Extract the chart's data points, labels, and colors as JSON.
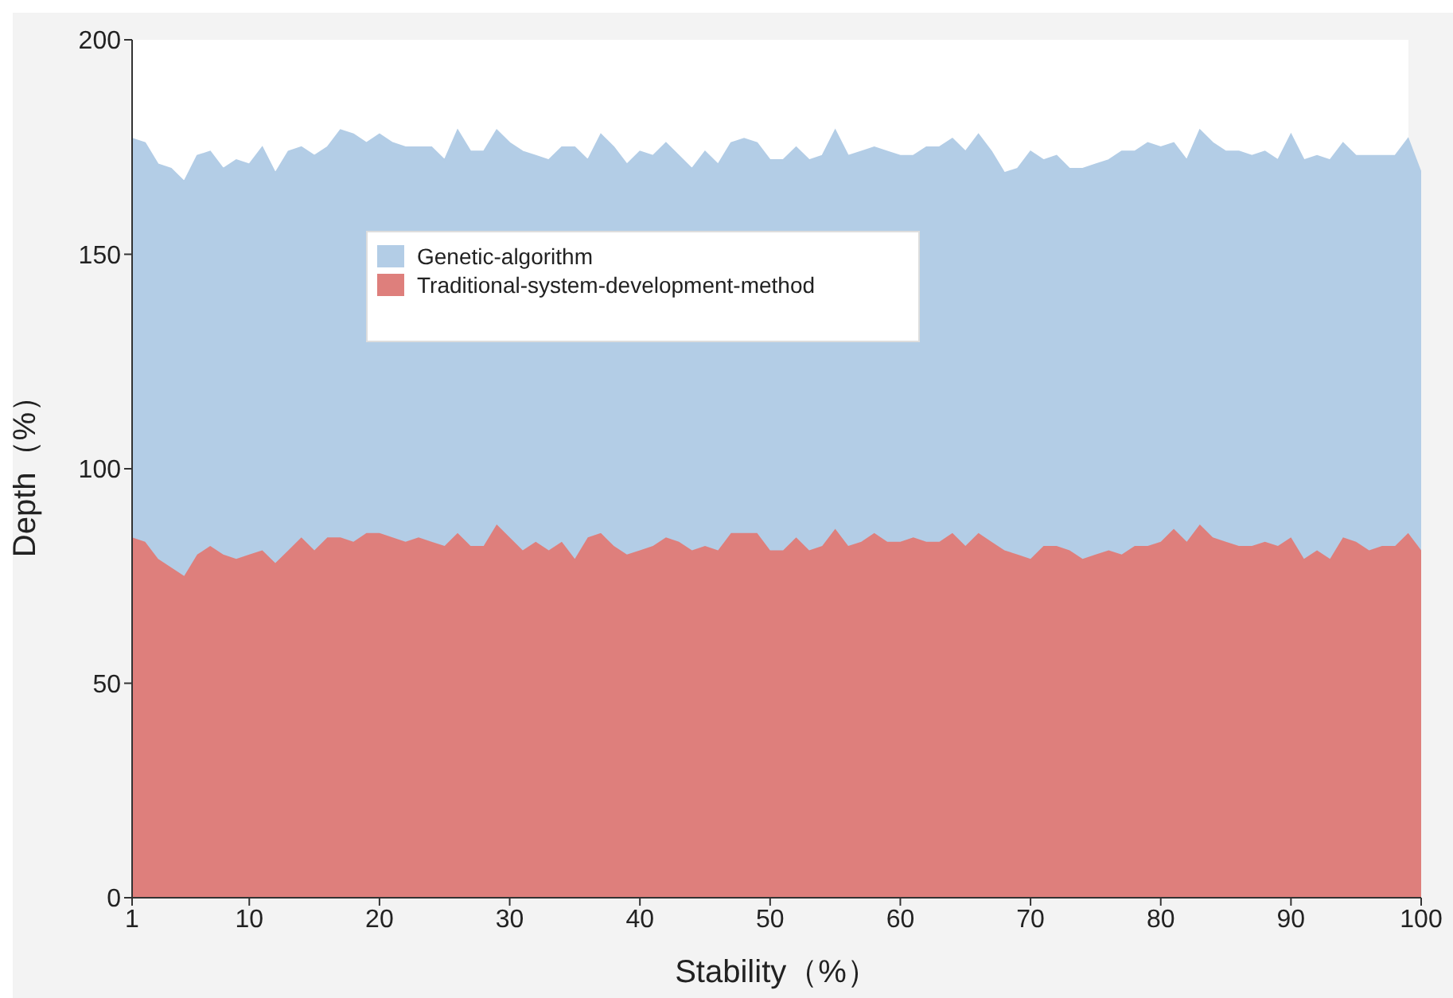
{
  "chart_data": {
    "type": "area",
    "stacked": true,
    "xlabel": "Stability（%）",
    "ylabel": "Depth（%）",
    "x": [
      1,
      2,
      3,
      4,
      5,
      6,
      7,
      8,
      9,
      10,
      11,
      12,
      13,
      14,
      15,
      16,
      17,
      18,
      19,
      20,
      21,
      22,
      23,
      24,
      25,
      26,
      27,
      28,
      29,
      30,
      31,
      32,
      33,
      34,
      35,
      36,
      37,
      38,
      39,
      40,
      41,
      42,
      43,
      44,
      45,
      46,
      47,
      48,
      49,
      50,
      51,
      52,
      53,
      54,
      55,
      56,
      57,
      58,
      59,
      60,
      61,
      62,
      63,
      64,
      65,
      66,
      67,
      68,
      69,
      70,
      71,
      72,
      73,
      74,
      75,
      76,
      77,
      78,
      79,
      80,
      81,
      82,
      83,
      84,
      85,
      86,
      87,
      88,
      89,
      90,
      91,
      92,
      93,
      94,
      95,
      96,
      97,
      98,
      99,
      100
    ],
    "series": [
      {
        "name": "Traditional-system-development-method",
        "color": "#de7f7c",
        "values": [
          84,
          83,
          79,
          77,
          75,
          80,
          82,
          80,
          79,
          80,
          81,
          78,
          81,
          84,
          81,
          84,
          84,
          83,
          85,
          85,
          84,
          83,
          84,
          83,
          82,
          85,
          82,
          82,
          87,
          84,
          81,
          83,
          81,
          83,
          79,
          84,
          85,
          82,
          80,
          81,
          82,
          84,
          83,
          81,
          82,
          81,
          85,
          85,
          85,
          81,
          81,
          84,
          81,
          82,
          86,
          82,
          83,
          85,
          83,
          83,
          84,
          83,
          83,
          85,
          82,
          85,
          83,
          81,
          80,
          79,
          82,
          82,
          81,
          79,
          80,
          81,
          80,
          82,
          82,
          83,
          86,
          83,
          87,
          84,
          83,
          82,
          82,
          83,
          82,
          84,
          79,
          81,
          79,
          84,
          83,
          81,
          82,
          82,
          85,
          81
        ]
      },
      {
        "name": "Genetic-algorithm",
        "color": "#b3cde6",
        "values": [
          93,
          93,
          92,
          93,
          92,
          93,
          92,
          90,
          93,
          91,
          94,
          91,
          93,
          91,
          92,
          91,
          95,
          95,
          91,
          93,
          92,
          92,
          91,
          92,
          90,
          94,
          92,
          92,
          92,
          92,
          93,
          90,
          91,
          92,
          96,
          88,
          93,
          93,
          91,
          93,
          91,
          92,
          90,
          89,
          92,
          90,
          91,
          92,
          91,
          91,
          91,
          91,
          91,
          91,
          93,
          91,
          91,
          90,
          91,
          90,
          89,
          92,
          92,
          92,
          92,
          93,
          91,
          88,
          90,
          95,
          90,
          91,
          89,
          91,
          91,
          91,
          94,
          92,
          94,
          92,
          90,
          89,
          92,
          92,
          91,
          92,
          91,
          91,
          90,
          94,
          93,
          92,
          93,
          92,
          90,
          92,
          91,
          91,
          92,
          88
        ]
      }
    ],
    "xlim": [
      1,
      100
    ],
    "xticks": [
      1,
      10,
      20,
      30,
      40,
      50,
      60,
      70,
      80,
      90,
      100
    ],
    "ylim": [
      0,
      200
    ],
    "yticks": [
      0,
      50,
      100,
      150,
      200
    ],
    "legend": "top left"
  }
}
